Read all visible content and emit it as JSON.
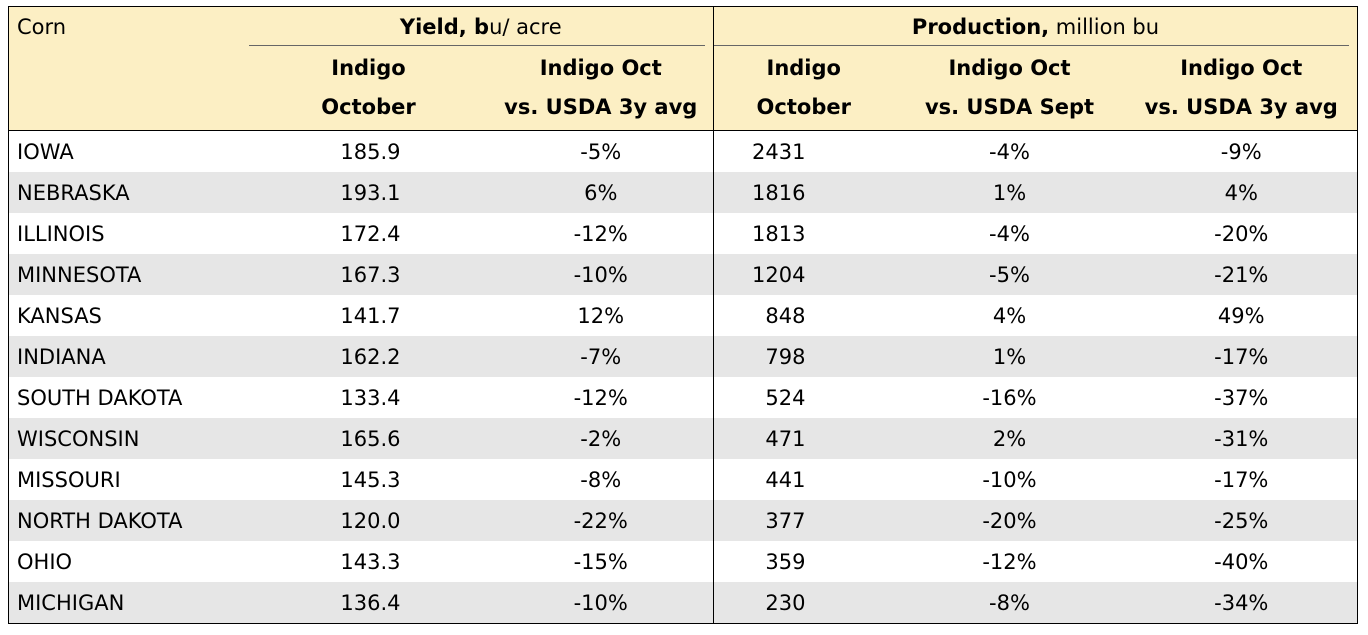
{
  "chart_data": {
    "type": "table",
    "corner_label": "Corn",
    "groups": [
      {
        "name_bold": "Yield,",
        "name_bold2": " b",
        "name_rest": "u/ acre"
      },
      {
        "name_bold": "Production,",
        "name_rest": " million bu"
      }
    ],
    "columns": [
      {
        "line1": "Indigo",
        "line2": "October"
      },
      {
        "line1": "Indigo Oct",
        "line2": "vs. USDA 3y avg"
      },
      {
        "line1": "Indigo",
        "line2": "October"
      },
      {
        "line1": "Indigo Oct",
        "line2": "vs. USDA Sept"
      },
      {
        "line1": "Indigo Oct",
        "line2": "vs. USDA 3y avg"
      }
    ],
    "rows": [
      {
        "state": "IOWA",
        "values": [
          "185.9",
          "-5%",
          "2431",
          "-4%",
          "-9%"
        ]
      },
      {
        "state": "NEBRASKA",
        "values": [
          "193.1",
          "6%",
          "1816",
          "1%",
          "4%"
        ]
      },
      {
        "state": "ILLINOIS",
        "values": [
          "172.4",
          "-12%",
          "1813",
          "-4%",
          "-20%"
        ]
      },
      {
        "state": "MINNESOTA",
        "values": [
          "167.3",
          "-10%",
          "1204",
          "-5%",
          "-21%"
        ]
      },
      {
        "state": "KANSAS",
        "values": [
          "141.7",
          "12%",
          "848",
          "4%",
          "49%"
        ]
      },
      {
        "state": "INDIANA",
        "values": [
          "162.2",
          "-7%",
          "798",
          "1%",
          "-17%"
        ]
      },
      {
        "state": "SOUTH DAKOTA",
        "values": [
          "133.4",
          "-12%",
          "524",
          "-16%",
          "-37%"
        ]
      },
      {
        "state": "WISCONSIN",
        "values": [
          "165.6",
          "-2%",
          "471",
          "2%",
          "-31%"
        ]
      },
      {
        "state": "MISSOURI",
        "values": [
          "145.3",
          "-8%",
          "441",
          "-10%",
          "-17%"
        ]
      },
      {
        "state": "NORTH DAKOTA",
        "values": [
          "120.0",
          "-22%",
          "377",
          "-20%",
          "-25%"
        ]
      },
      {
        "state": "OHIO",
        "values": [
          "143.3",
          "-15%",
          "359",
          "-12%",
          "-40%"
        ]
      },
      {
        "state": "MICHIGAN",
        "values": [
          "136.4",
          "-10%",
          "230",
          "-8%",
          "-34%"
        ]
      }
    ],
    "colors": {
      "header_fill": "#fcefc4",
      "stripe_fill": "#e6e6e6",
      "border": "#000000"
    }
  }
}
